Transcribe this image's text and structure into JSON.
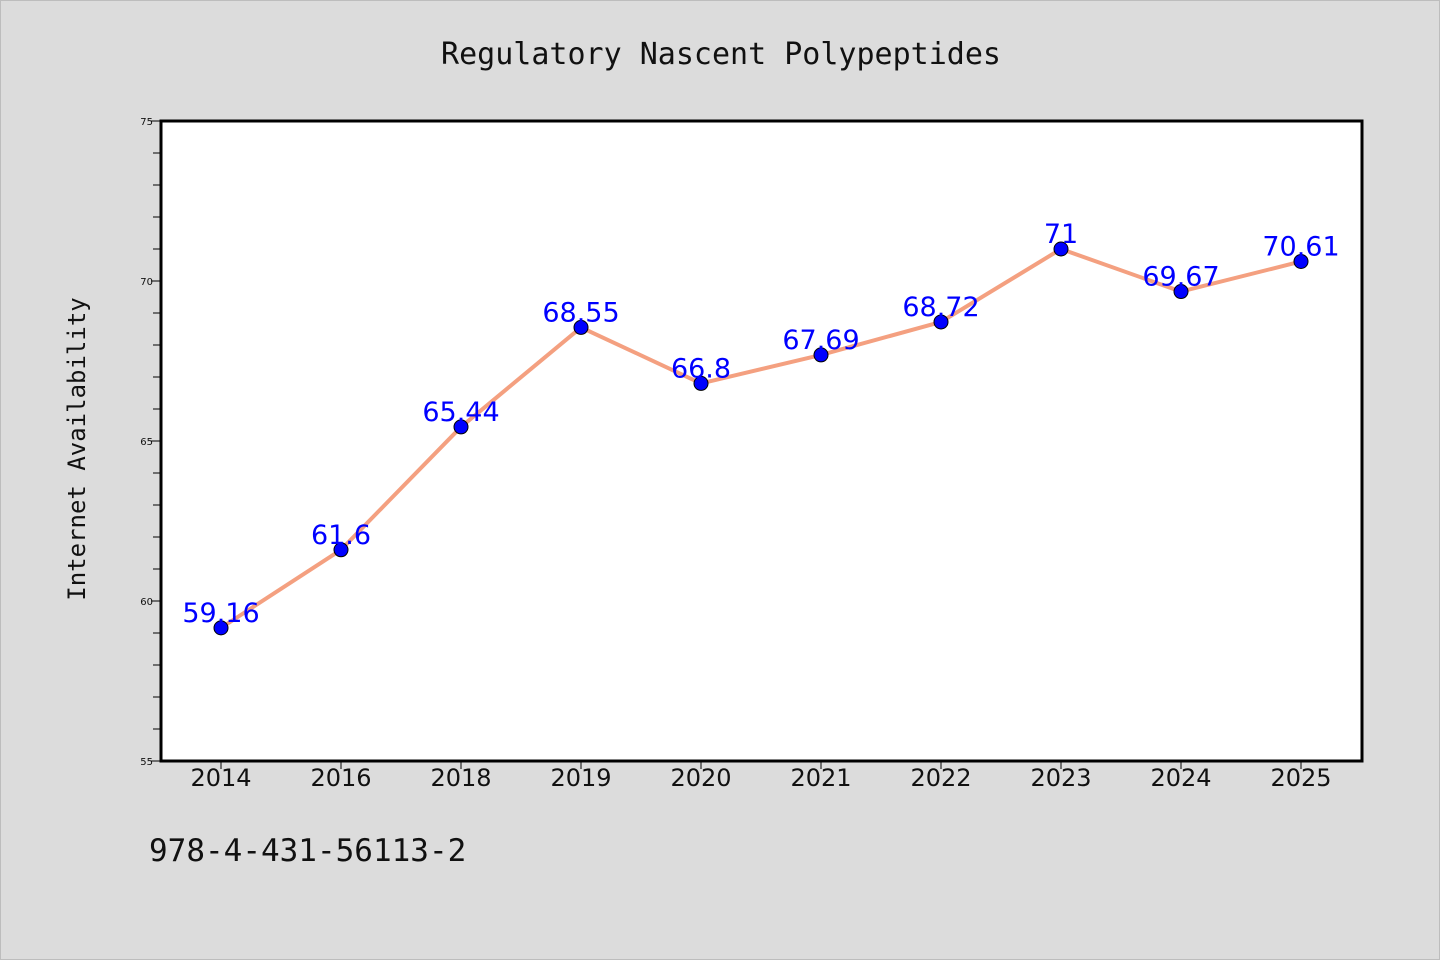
{
  "chart_data": {
    "type": "line",
    "title": "Regulatory Nascent Polypeptides",
    "xlabel": "",
    "ylabel": "Internet Availability",
    "categories": [
      "2014",
      "2016",
      "2018",
      "2019",
      "2020",
      "2021",
      "2022",
      "2023",
      "2024",
      "2025"
    ],
    "series": [
      {
        "values": [
          59.16,
          61.6,
          65.44,
          68.55,
          66.8,
          67.69,
          68.72,
          71,
          69.67,
          70.61
        ],
        "labels": [
          "59.16",
          "61.6",
          "65.44",
          "68.55",
          "66.8",
          "67.69",
          "68.72",
          "71",
          "69.67",
          "70.61"
        ],
        "line_color": "#f4a080",
        "marker_color": "#0000ff"
      }
    ],
    "ylim": [
      55,
      75
    ],
    "yticks": [
      55,
      60,
      65,
      70,
      75
    ],
    "ytick_labels": [
      "55",
      "60",
      "65",
      "70",
      "75"
    ],
    "grid": false,
    "legend": "none"
  },
  "footer": {
    "code": "978-4-431-56113-2"
  },
  "colors": {
    "background": "#dcdcdc",
    "plot_background": "#ffffff",
    "label_color": "#0000ff"
  }
}
